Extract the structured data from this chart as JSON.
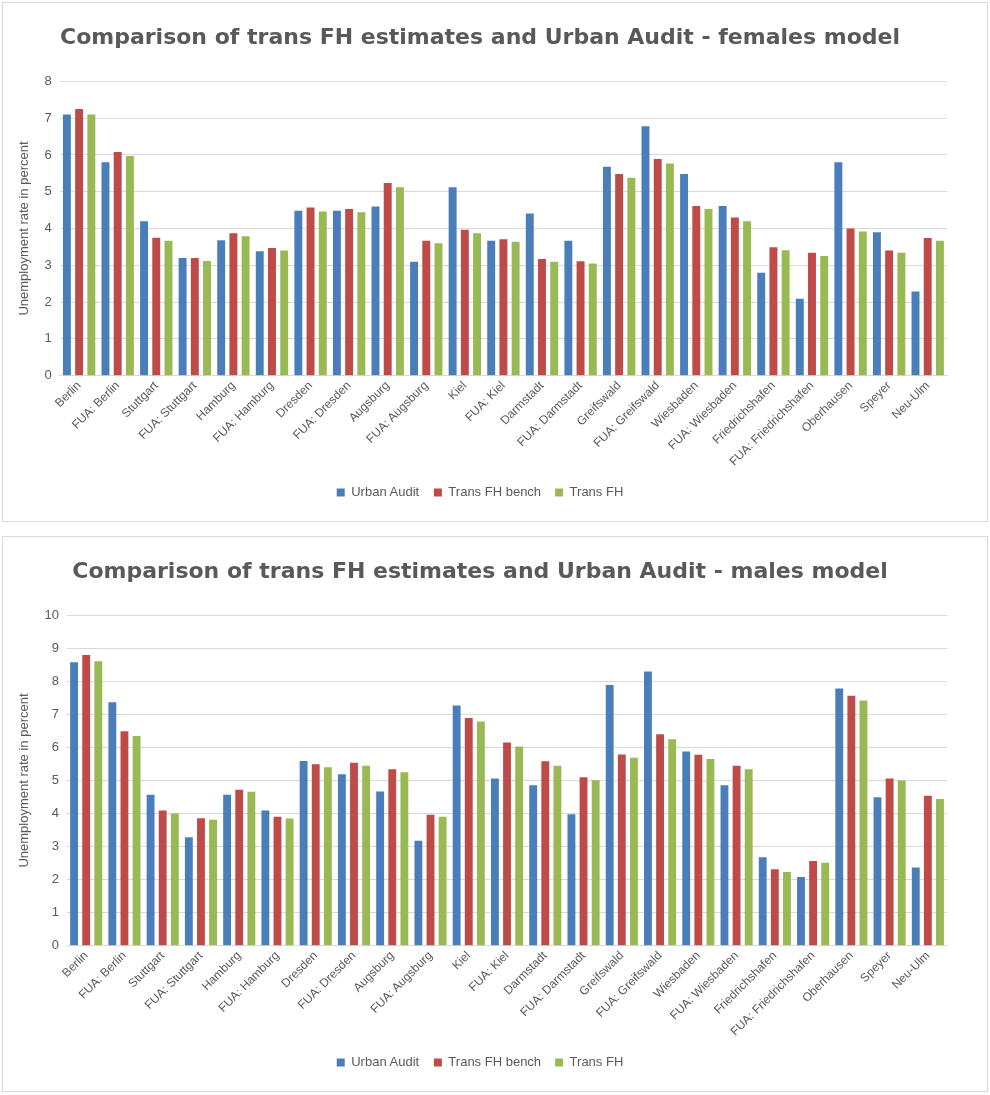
{
  "chart_data": [
    {
      "type": "bar",
      "title": "Comparison of trans FH estimates and Urban Audit - females model",
      "ylabel": "Unemployment rate in percent",
      "categories": [
        "Berlin",
        "FUA: Berlin",
        "Stuttgart",
        "FUA: Stuttgart",
        "Hamburg",
        "FUA: Hamburg",
        "Dresden",
        "FUA: Dresden",
        "Augsburg",
        "FUA: Augsburg",
        "Kiel",
        "FUA: Kiel",
        "Darmstadt",
        "FUA: Darmstadt",
        "Greifswald",
        "FUA: Greifswald",
        "Wiesbaden",
        "FUA: Wiesbaden",
        "Friedrichshafen",
        "FUA: Friedrichshafen",
        "Oberhausen",
        "Speyer",
        "Neu-Ulm"
      ],
      "series": [
        {
          "name": "Urban Audit",
          "color": "#4a7ebb",
          "values": [
            7.1,
            5.8,
            4.2,
            3.2,
            3.68,
            3.38,
            4.48,
            4.48,
            4.6,
            3.1,
            5.12,
            3.67,
            4.41,
            3.67,
            5.68,
            6.78,
            5.48,
            4.61,
            2.8,
            2.09,
            5.8,
            3.9,
            2.29
          ]
        },
        {
          "name": "Trans FH bench",
          "color": "#be4b48",
          "values": [
            7.25,
            6.08,
            3.75,
            3.2,
            3.87,
            3.47,
            4.57,
            4.53,
            5.24,
            3.67,
            3.97,
            3.71,
            3.17,
            3.11,
            5.48,
            5.89,
            4.61,
            4.3,
            3.49,
            3.34,
            4.0,
            3.4,
            3.74
          ]
        },
        {
          "name": "Trans FH",
          "color": "#98b954",
          "values": [
            7.1,
            5.97,
            3.67,
            3.12,
            3.79,
            3.4,
            4.46,
            4.44,
            5.12,
            3.6,
            3.87,
            3.64,
            3.1,
            3.05,
            5.38,
            5.77,
            4.53,
            4.2,
            3.41,
            3.25,
            3.92,
            3.34,
            3.67
          ]
        }
      ],
      "ylim": [
        0,
        8
      ],
      "yticks": [
        0,
        1,
        2,
        3,
        4,
        5,
        6,
        7,
        8
      ],
      "grid": "y",
      "legend": "bottom"
    },
    {
      "type": "bar",
      "title": "Comparison of trans FH estimates and Urban Audit - males model",
      "ylabel": "Unemployment rate in percent",
      "categories": [
        "Berlin",
        "FUA: Berlin",
        "Stuttgart",
        "FUA: Stuttgart",
        "Hamburg",
        "FUA: Hamburg",
        "Dresden",
        "FUA: Dresden",
        "Augsburg",
        "FUA: Augsburg",
        "Kiel",
        "FUA: Kiel",
        "Darmstadt",
        "FUA: Darmstadt",
        "Greifswald",
        "FUA: Greifswald",
        "Wiesbaden",
        "FUA: Wiesbaden",
        "Friedrichshafen",
        "FUA: Friedrichshafen",
        "Oberhausen",
        "Speyer",
        "Neu-Ulm"
      ],
      "series": [
        {
          "name": "Urban Audit",
          "color": "#4a7ebb",
          "values": [
            8.58,
            7.37,
            4.57,
            3.28,
            4.57,
            4.09,
            5.59,
            5.19,
            4.67,
            3.18,
            7.27,
            5.06,
            4.86,
            3.98,
            7.89,
            8.3,
            5.88,
            4.86,
            2.68,
            2.08,
            7.79,
            4.49,
            2.37
          ]
        },
        {
          "name": "Trans FH bench",
          "color": "#be4b48",
          "values": [
            8.8,
            6.49,
            4.09,
            3.86,
            4.72,
            3.9,
            5.49,
            5.54,
            5.34,
            3.96,
            6.89,
            6.15,
            5.58,
            5.1,
            5.79,
            6.4,
            5.78,
            5.45,
            2.31,
            2.56,
            7.57,
            5.06,
            4.54
          ]
        },
        {
          "name": "Trans FH",
          "color": "#98b954",
          "values": [
            8.61,
            6.35,
            4.0,
            3.81,
            4.66,
            3.85,
            5.4,
            5.45,
            5.25,
            3.9,
            6.79,
            6.03,
            5.45,
            5.01,
            5.69,
            6.25,
            5.65,
            5.34,
            2.23,
            2.51,
            7.42,
            5.0,
            4.44
          ]
        }
      ],
      "ylim": [
        0,
        10
      ],
      "yticks": [
        0,
        1,
        2,
        3,
        4,
        5,
        6,
        7,
        8,
        9,
        10
      ],
      "grid": "y",
      "legend": "bottom"
    }
  ]
}
